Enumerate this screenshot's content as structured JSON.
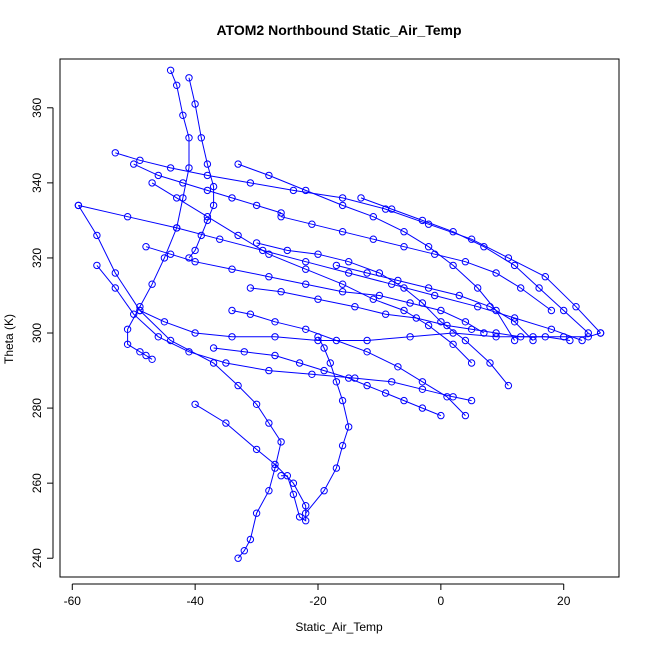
{
  "chart_data": {
    "type": "scatter",
    "title": "ATOM2 Northbound Static_Air_Temp",
    "xlabel": "Static_Air_Temp",
    "ylabel": "Theta (K)",
    "xlim": [
      -62,
      29
    ],
    "ylim": [
      235,
      373
    ],
    "xticks": [
      -60,
      -40,
      -20,
      0,
      20
    ],
    "yticks": [
      240,
      260,
      280,
      300,
      320,
      340,
      360
    ],
    "grid": false,
    "marker": "open-circle",
    "line_style": "line-and-points",
    "colors": {
      "series": "#0000ff",
      "axis": "#000000"
    },
    "series": [
      {
        "x": [
          -33,
          -32,
          -31,
          -30,
          -28,
          -27,
          -26,
          -28,
          -30,
          -33,
          -37,
          -44,
          -49,
          -53,
          -56,
          -59
        ],
        "y": [
          240,
          242,
          245,
          252,
          258,
          264,
          271,
          276,
          281,
          286,
          292,
          298,
          306,
          316,
          326,
          334
        ]
      },
      {
        "x": [
          -40,
          -35,
          -30,
          -27,
          -24,
          -22,
          -22,
          -23,
          -24,
          -25,
          -26
        ],
        "y": [
          281,
          276,
          269,
          265,
          260,
          254,
          250,
          251,
          257,
          262,
          262
        ]
      },
      {
        "x": [
          -22,
          -19,
          -17,
          -16,
          -15,
          -16,
          -17,
          -18,
          -19,
          -20
        ],
        "y": [
          252,
          258,
          264,
          270,
          275,
          282,
          287,
          292,
          296,
          299
        ]
      },
      {
        "x": [
          -56,
          -53,
          -50,
          -46,
          -41,
          -35,
          -28,
          -21,
          -14,
          -8,
          -3,
          2,
          5
        ],
        "y": [
          318,
          312,
          305,
          299,
          295,
          292,
          290,
          289,
          288,
          287,
          285,
          283,
          282
        ]
      },
      {
        "x": [
          -49,
          -45,
          -40,
          -34,
          -27,
          -20,
          -12,
          -5,
          2,
          9,
          15,
          20,
          24,
          26
        ],
        "y": [
          306,
          303,
          300,
          299,
          299,
          298,
          298,
          299,
          300,
          299,
          299,
          299,
          299,
          300
        ]
      },
      {
        "x": [
          -53,
          -49,
          -44,
          -38,
          -31,
          -24,
          -16,
          -9,
          -2,
          5,
          11,
          17,
          22,
          26
        ],
        "y": [
          348,
          346,
          344,
          342,
          340,
          338,
          336,
          333,
          329,
          325,
          320,
          315,
          307,
          300
        ]
      },
      {
        "x": [
          -59,
          -51,
          -43,
          -36,
          -29,
          -22,
          -15,
          -8,
          -1,
          6,
          12,
          18,
          23
        ],
        "y": [
          334,
          331,
          328,
          325,
          322,
          319,
          316,
          313,
          310,
          307,
          304,
          301,
          298
        ]
      },
      {
        "x": [
          -48,
          -44,
          -40,
          -34,
          -28,
          -22,
          -16,
          -10,
          -5,
          0,
          4,
          7
        ],
        "y": [
          323,
          321,
          319,
          317,
          315,
          313,
          311,
          310,
          308,
          306,
          303,
          300
        ]
      },
      {
        "x": [
          -44,
          -43,
          -42,
          -41,
          -41,
          -42,
          -43,
          -45,
          -47,
          -49,
          -51,
          -51,
          -49,
          -48,
          -47
        ],
        "y": [
          370,
          366,
          358,
          352,
          344,
          336,
          328,
          320,
          313,
          307,
          301,
          297,
          295,
          294,
          293
        ]
      },
      {
        "x": [
          -41,
          -40,
          -39,
          -38,
          -37,
          -37,
          -38,
          -39,
          -40,
          -41
        ],
        "y": [
          368,
          361,
          352,
          345,
          339,
          334,
          330,
          326,
          322,
          320
        ]
      },
      {
        "x": [
          -33,
          -28,
          -22,
          -16,
          -11,
          -6,
          -2,
          2,
          6,
          9,
          12
        ],
        "y": [
          345,
          342,
          338,
          334,
          331,
          327,
          323,
          318,
          312,
          306,
          298
        ]
      },
      {
        "x": [
          -47,
          -43,
          -38,
          -33,
          -28,
          -22,
          -16,
          -11,
          -6,
          -2,
          2,
          5
        ],
        "y": [
          340,
          336,
          331,
          326,
          321,
          317,
          313,
          309,
          306,
          302,
          297,
          292
        ]
      },
      {
        "x": [
          -31,
          -26,
          -20,
          -14,
          -9,
          -4,
          1,
          5,
          9,
          13,
          17,
          21
        ],
        "y": [
          312,
          311,
          309,
          307,
          305,
          304,
          302,
          301,
          300,
          299,
          299,
          298
        ]
      },
      {
        "x": [
          -34,
          -31,
          -27,
          -22,
          -17,
          -12,
          -7,
          -3,
          1,
          4
        ],
        "y": [
          306,
          305,
          303,
          301,
          298,
          295,
          291,
          287,
          283,
          278
        ]
      },
      {
        "x": [
          -37,
          -32,
          -27,
          -23,
          -19,
          -15,
          -12,
          -9,
          -6,
          -3,
          0
        ],
        "y": [
          296,
          295,
          294,
          292,
          290,
          288,
          286,
          284,
          282,
          280,
          278
        ]
      },
      {
        "x": [
          -30,
          -25,
          -20,
          -15,
          -10,
          -6,
          -3,
          0,
          4,
          8,
          11
        ],
        "y": [
          324,
          322,
          321,
          319,
          316,
          312,
          308,
          303,
          298,
          292,
          286
        ]
      },
      {
        "x": [
          -13,
          -8,
          -3,
          2,
          7,
          12,
          16,
          20,
          24
        ],
        "y": [
          336,
          333,
          330,
          327,
          323,
          318,
          312,
          306,
          300
        ]
      },
      {
        "x": [
          -50,
          -46,
          -42,
          -38,
          -34,
          -30,
          -26
        ],
        "y": [
          345,
          342,
          340,
          338,
          336,
          334,
          332
        ]
      },
      {
        "x": [
          -17,
          -12,
          -7,
          -2,
          3,
          8,
          12,
          15
        ],
        "y": [
          318,
          316,
          314,
          312,
          310,
          307,
          303,
          298
        ]
      },
      {
        "x": [
          -26,
          -21,
          -16,
          -11,
          -6,
          -1,
          4,
          9,
          13,
          18
        ],
        "y": [
          331,
          329,
          327,
          325,
          323,
          321,
          319,
          316,
          312,
          306
        ]
      }
    ]
  }
}
